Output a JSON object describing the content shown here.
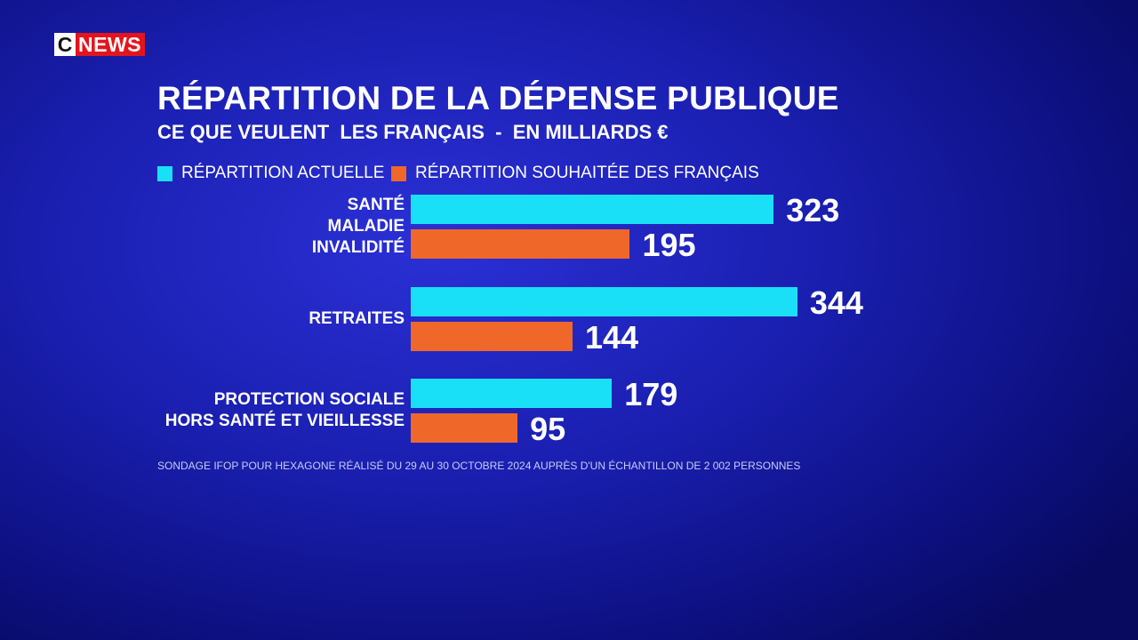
{
  "logo": {
    "c": "C",
    "news": "NEWS"
  },
  "chart_data": {
    "type": "bar",
    "orientation": "horizontal",
    "title": "RÉPARTITION DE LA DÉPENSE PUBLIQUE",
    "subtitle": "CE QUE VEULENT  LES FRANÇAIS  -  EN MILLIARDS €",
    "categories": [
      "SANTÉ\nMALADIE\nINVALIDITÉ",
      "RETRAITES",
      "PROTECTION SOCIALE\nHORS SANTÉ ET VIEILLESSE"
    ],
    "series": [
      {
        "name": "RÉPARTITION ACTUELLE",
        "color": "#19e0f7",
        "values": [
          323,
          344,
          179
        ]
      },
      {
        "name": "RÉPARTITION SOUHAITÉE DES FRANÇAIS",
        "color": "#f0672a",
        "values": [
          195,
          144,
          95
        ]
      }
    ],
    "source": "SONDAGE IFOP POUR HEXAGONE RÉALISÉ DU 29 AU 30 OCTOBRE 2024 AUPRÈS D'UN ÉCHANTILLON DE 2 002 PERSONNES"
  }
}
